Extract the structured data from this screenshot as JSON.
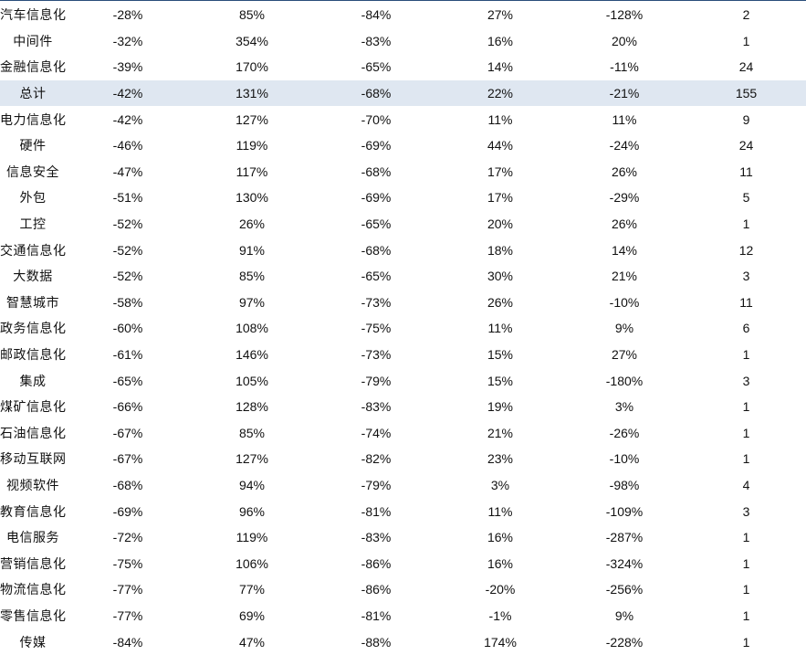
{
  "table": {
    "rows": [
      {
        "name": "汽车信息化",
        "c1": "-28%",
        "c2": "85%",
        "c3": "-84%",
        "c4": "27%",
        "c5": "-128%",
        "count": "2",
        "highlight": false
      },
      {
        "name": "中间件",
        "c1": "-32%",
        "c2": "354%",
        "c3": "-83%",
        "c4": "16%",
        "c5": "20%",
        "count": "1",
        "highlight": false
      },
      {
        "name": "金融信息化",
        "c1": "-39%",
        "c2": "170%",
        "c3": "-65%",
        "c4": "14%",
        "c5": "-11%",
        "count": "24",
        "highlight": false
      },
      {
        "name": "总计",
        "c1": "-42%",
        "c2": "131%",
        "c3": "-68%",
        "c4": "22%",
        "c5": "-21%",
        "count": "155",
        "highlight": true
      },
      {
        "name": "电力信息化",
        "c1": "-42%",
        "c2": "127%",
        "c3": "-70%",
        "c4": "11%",
        "c5": "11%",
        "count": "9",
        "highlight": false
      },
      {
        "name": "硬件",
        "c1": "-46%",
        "c2": "119%",
        "c3": "-69%",
        "c4": "44%",
        "c5": "-24%",
        "count": "24",
        "highlight": false
      },
      {
        "name": "信息安全",
        "c1": "-47%",
        "c2": "117%",
        "c3": "-68%",
        "c4": "17%",
        "c5": "26%",
        "count": "11",
        "highlight": false
      },
      {
        "name": "外包",
        "c1": "-51%",
        "c2": "130%",
        "c3": "-69%",
        "c4": "17%",
        "c5": "-29%",
        "count": "5",
        "highlight": false
      },
      {
        "name": "工控",
        "c1": "-52%",
        "c2": "26%",
        "c3": "-65%",
        "c4": "20%",
        "c5": "26%",
        "count": "1",
        "highlight": false
      },
      {
        "name": "交通信息化",
        "c1": "-52%",
        "c2": "91%",
        "c3": "-68%",
        "c4": "18%",
        "c5": "14%",
        "count": "12",
        "highlight": false
      },
      {
        "name": "大数据",
        "c1": "-52%",
        "c2": "85%",
        "c3": "-65%",
        "c4": "30%",
        "c5": "21%",
        "count": "3",
        "highlight": false
      },
      {
        "name": "智慧城市",
        "c1": "-58%",
        "c2": "97%",
        "c3": "-73%",
        "c4": "26%",
        "c5": "-10%",
        "count": "11",
        "highlight": false
      },
      {
        "name": "政务信息化",
        "c1": "-60%",
        "c2": "108%",
        "c3": "-75%",
        "c4": "11%",
        "c5": "9%",
        "count": "6",
        "highlight": false
      },
      {
        "name": "邮政信息化",
        "c1": "-61%",
        "c2": "146%",
        "c3": "-73%",
        "c4": "15%",
        "c5": "27%",
        "count": "1",
        "highlight": false
      },
      {
        "name": "集成",
        "c1": "-65%",
        "c2": "105%",
        "c3": "-79%",
        "c4": "15%",
        "c5": "-180%",
        "count": "3",
        "highlight": false
      },
      {
        "name": "煤矿信息化",
        "c1": "-66%",
        "c2": "128%",
        "c3": "-83%",
        "c4": "19%",
        "c5": "3%",
        "count": "1",
        "highlight": false
      },
      {
        "name": "石油信息化",
        "c1": "-67%",
        "c2": "85%",
        "c3": "-74%",
        "c4": "21%",
        "c5": "-26%",
        "count": "1",
        "highlight": false
      },
      {
        "name": "移动互联网",
        "c1": "-67%",
        "c2": "127%",
        "c3": "-82%",
        "c4": "23%",
        "c5": "-10%",
        "count": "1",
        "highlight": false
      },
      {
        "name": "视频软件",
        "c1": "-68%",
        "c2": "94%",
        "c3": "-79%",
        "c4": "3%",
        "c5": "-98%",
        "count": "4",
        "highlight": false
      },
      {
        "name": "教育信息化",
        "c1": "-69%",
        "c2": "96%",
        "c3": "-81%",
        "c4": "11%",
        "c5": "-109%",
        "count": "3",
        "highlight": false
      },
      {
        "name": "电信服务",
        "c1": "-72%",
        "c2": "119%",
        "c3": "-83%",
        "c4": "16%",
        "c5": "-287%",
        "count": "1",
        "highlight": false
      },
      {
        "name": "营销信息化",
        "c1": "-75%",
        "c2": "106%",
        "c3": "-86%",
        "c4": "16%",
        "c5": "-324%",
        "count": "1",
        "highlight": false
      },
      {
        "name": "物流信息化",
        "c1": "-77%",
        "c2": "77%",
        "c3": "-86%",
        "c4": "-20%",
        "c5": "-256%",
        "count": "1",
        "highlight": false
      },
      {
        "name": "零售信息化",
        "c1": "-77%",
        "c2": "69%",
        "c3": "-81%",
        "c4": "-1%",
        "c5": "9%",
        "count": "1",
        "highlight": false
      },
      {
        "name": "传媒",
        "c1": "-84%",
        "c2": "47%",
        "c3": "-88%",
        "c4": "174%",
        "c5": "-228%",
        "count": "1",
        "highlight": false
      }
    ]
  },
  "colors": {
    "highlight_row": "#dfe7f1",
    "top_rule": "#2a4d7a"
  }
}
